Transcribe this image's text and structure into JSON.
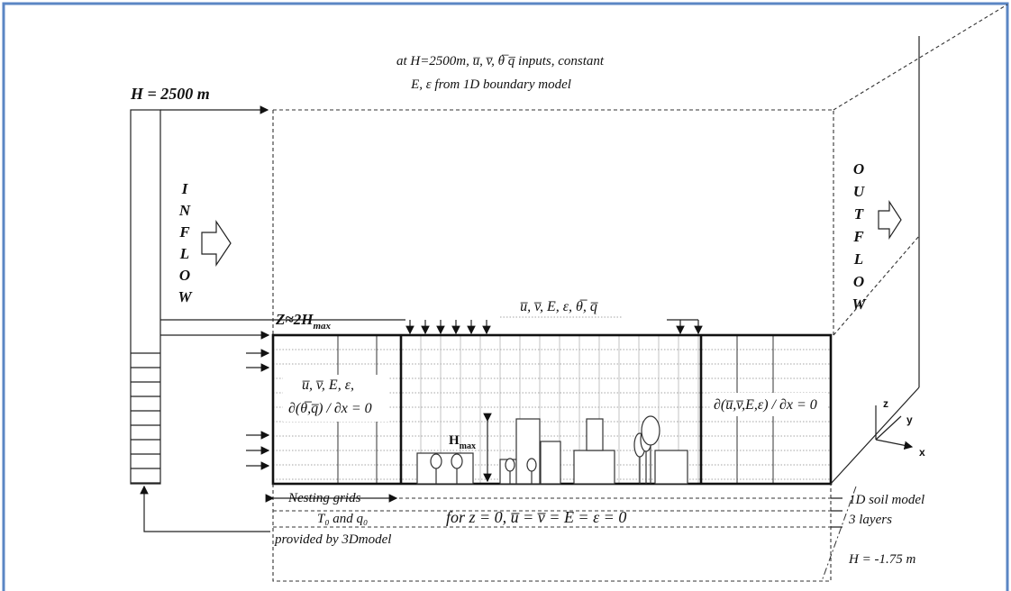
{
  "top_note": {
    "line1": "at H=2500m, u̅, v̅, θ̅ q̅ inputs, constant",
    "line2": "E, ε from 1D boundary model"
  },
  "column_height": "H = 2500 m",
  "inflow_letters": [
    "I",
    "N",
    "F",
    "L",
    "O",
    "W"
  ],
  "outflow_letters": [
    "O",
    "U",
    "T",
    "F",
    "L",
    "O",
    "W"
  ],
  "domain_height": {
    "text": "Z≈2H",
    "sub": "max"
  },
  "top_boundary": "u̅, v̅, E, ε, θ̅, q̅",
  "inlet_condition": {
    "line1": "u̅, v̅, E, ε,",
    "line2": "∂(θ̅,q̅) / ∂x = 0"
  },
  "outlet_condition": "∂(u̅,v̅,E,ε) / ∂x = 0",
  "building_height": {
    "text": "H",
    "sub": "max"
  },
  "nesting": {
    "line1": "Nesting grids",
    "line2": "T₀ and q₀",
    "line3": "provided by 3Dmodel"
  },
  "ground_condition": "for z = 0, u̅ = v̅ = E = ε = 0",
  "soil": {
    "line1": "1D soil model",
    "line2": "3 layers",
    "depth": "H = -1.75 m"
  },
  "axes": {
    "z": "z",
    "y": "y",
    "x": "x"
  }
}
